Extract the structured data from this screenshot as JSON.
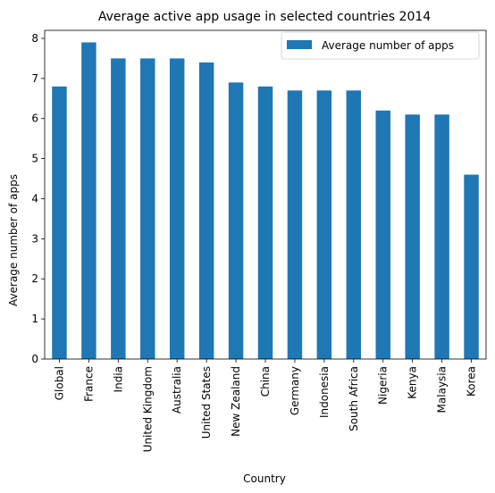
{
  "chart_data": {
    "type": "bar",
    "title": "Average active app usage in selected countries 2014",
    "xlabel": "Country",
    "ylabel": "Average number of apps",
    "categories": [
      "Global",
      "France",
      "India",
      "United Kingdom",
      "Australia",
      "United States",
      "New Zealand",
      "China",
      "Germany",
      "Indonesia",
      "South Africa",
      "Nigeria",
      "Kenya",
      "Malaysia",
      "Korea"
    ],
    "series": [
      {
        "name": "Average number of apps",
        "values": [
          6.8,
          7.9,
          7.5,
          7.5,
          7.5,
          7.4,
          6.9,
          6.8,
          6.7,
          6.7,
          6.7,
          6.2,
          6.1,
          6.1,
          4.6
        ],
        "color": "#1f77b4"
      }
    ],
    "ylim": [
      0,
      8.2
    ],
    "yticks": [
      0,
      1,
      2,
      3,
      4,
      5,
      6,
      7,
      8
    ],
    "grid": false,
    "legend": "top-right"
  }
}
